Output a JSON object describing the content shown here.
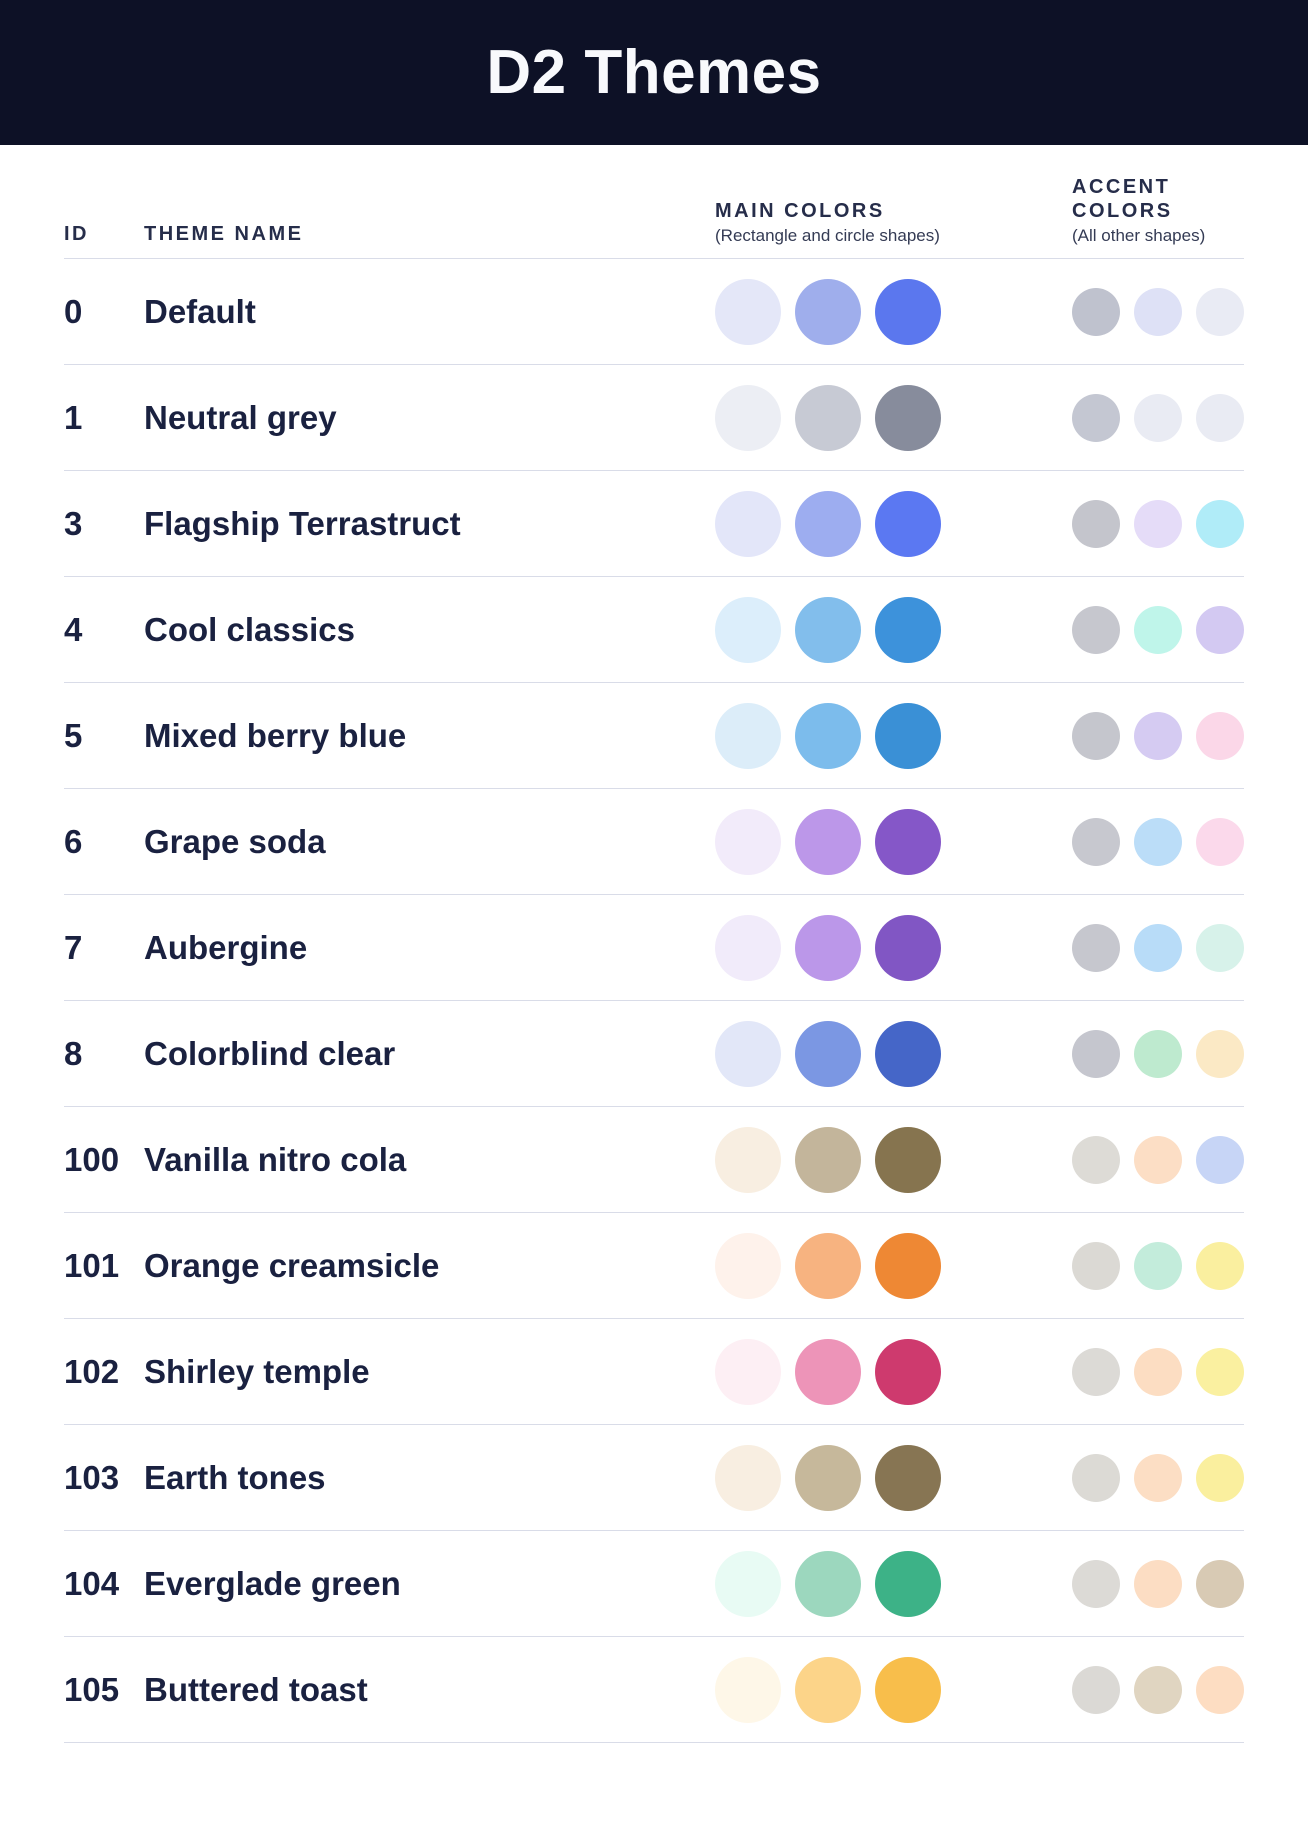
{
  "header": {
    "title": "D2 Themes",
    "bg_color": "#0D1126",
    "text_color": "#F8F9FC"
  },
  "table": {
    "columns": {
      "id_label": "ID",
      "name_label": "THEME NAME",
      "main_label": "MAIN COLORS",
      "main_sublabel": "(Rectangle and circle shapes)",
      "accent_label": "ACCENT COLORS",
      "accent_sublabel": "(All other shapes)"
    },
    "divider_color": "#D9DCE8",
    "rows": [
      {
        "id": "0",
        "name": "Default",
        "main": [
          "#E4E7F8",
          "#9FAEEC",
          "#5B77EE"
        ],
        "accent": [
          "#BFC2CE",
          "#DEE1F6",
          "#E9EBF4"
        ]
      },
      {
        "id": "1",
        "name": "Neutral grey",
        "main": [
          "#ECEEF4",
          "#C7CAD4",
          "#878C9C"
        ],
        "accent": [
          "#C4C7D2",
          "#E9EBF3",
          "#E9EBF3"
        ]
      },
      {
        "id": "3",
        "name": "Flagship Terrastruct",
        "main": [
          "#E3E6F9",
          "#9DADF0",
          "#5B78F2"
        ],
        "accent": [
          "#C4C5CC",
          "#E5DCF8",
          "#B0ECF8"
        ]
      },
      {
        "id": "4",
        "name": "Cool classics",
        "main": [
          "#DCEEFB",
          "#82BEEC",
          "#3D92DB"
        ],
        "accent": [
          "#C6C7CE",
          "#BFF5EA",
          "#D3C9F2"
        ]
      },
      {
        "id": "5",
        "name": "Mixed berry blue",
        "main": [
          "#DCEDF9",
          "#7CBCEC",
          "#3A90D6"
        ],
        "accent": [
          "#C5C6CD",
          "#D5CBF2",
          "#FBD7E8"
        ]
      },
      {
        "id": "6",
        "name": "Grape soda",
        "main": [
          "#F2EBFA",
          "#BC97E9",
          "#8557C8"
        ],
        "accent": [
          "#C7C8CF",
          "#BBDDF8",
          "#FBD9EB"
        ]
      },
      {
        "id": "7",
        "name": "Aubergine",
        "main": [
          "#F1EBFA",
          "#BB97E9",
          "#8156C4"
        ],
        "accent": [
          "#C6C7CE",
          "#B8DCF8",
          "#D7F2EA"
        ]
      },
      {
        "id": "8",
        "name": "Colorblind clear",
        "main": [
          "#E2E7F8",
          "#7B97E3",
          "#4566C8"
        ],
        "accent": [
          "#C5C6CE",
          "#BEEACF",
          "#FBE9C5"
        ]
      },
      {
        "id": "100",
        "name": "Vanilla nitro cola",
        "main": [
          "#F8EEE1",
          "#C3B59B",
          "#86744F"
        ],
        "accent": [
          "#DDDBD6",
          "#FCDEC5",
          "#C7D5F6"
        ]
      },
      {
        "id": "101",
        "name": "Orange creamsicle",
        "main": [
          "#FEF2EB",
          "#F7B380",
          "#EE8834"
        ],
        "accent": [
          "#DBD9D4",
          "#C3ECDB",
          "#FAEF9F"
        ]
      },
      {
        "id": "102",
        "name": "Shirley temple",
        "main": [
          "#FDEFF4",
          "#ED94B8",
          "#CE3A6E"
        ],
        "accent": [
          "#DCDAD6",
          "#FCDDC2",
          "#FAF0A0"
        ]
      },
      {
        "id": "103",
        "name": "Earth tones",
        "main": [
          "#F8EEE1",
          "#C6B89B",
          "#877553"
        ],
        "accent": [
          "#DCDAD5",
          "#FCDEC4",
          "#FAEF9E"
        ]
      },
      {
        "id": "104",
        "name": "Everglade green",
        "main": [
          "#E8FBF4",
          "#9CD7BE",
          "#3DB287"
        ],
        "accent": [
          "#DCDAD6",
          "#FCDDC3",
          "#D8CAB4"
        ]
      },
      {
        "id": "105",
        "name": "Buttered toast",
        "main": [
          "#FEF7E8",
          "#FCD489",
          "#F8BE4B"
        ],
        "accent": [
          "#DBD9D5",
          "#E0D5C1",
          "#FDDDC2"
        ]
      }
    ]
  }
}
